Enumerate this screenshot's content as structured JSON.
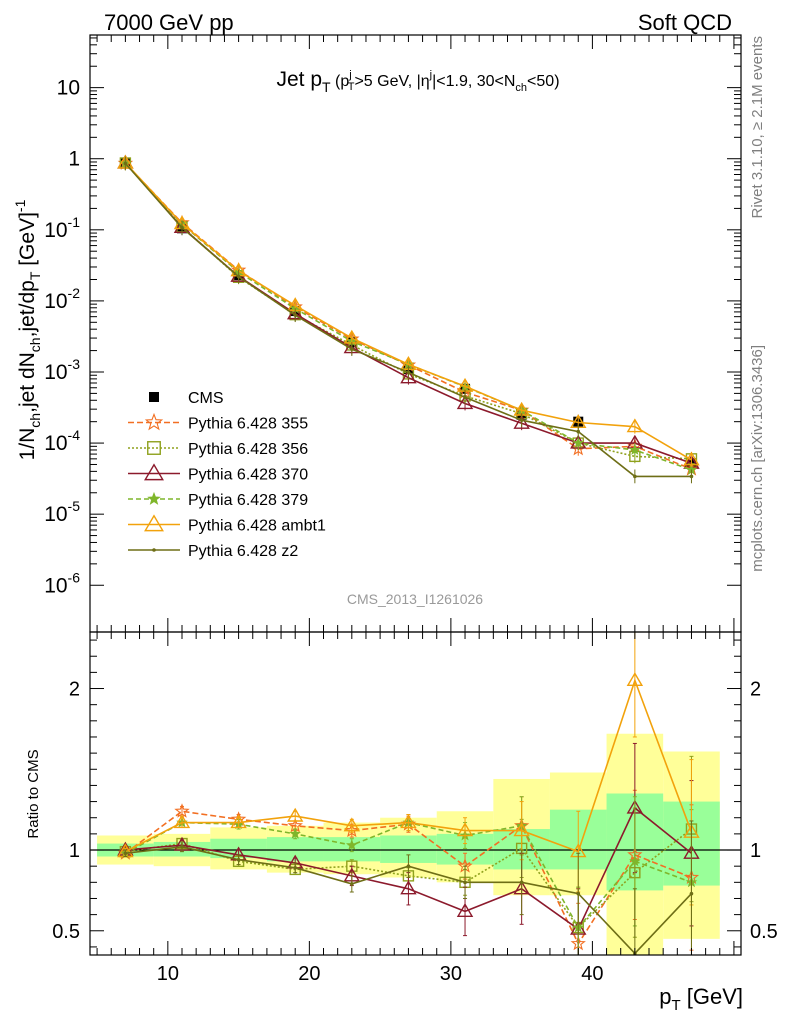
{
  "header": {
    "left": "7000 GeV pp",
    "right": "Soft QCD"
  },
  "side_labels": {
    "top": "Rivet 3.1.10, ≥ 2.1M events",
    "bottom": "mcplots.cern.ch [arXiv:1306.3436]"
  },
  "watermark": "CMS_2013_I1261026",
  "colors": {
    "cms": "#000000",
    "p355": "#f26f22",
    "p356": "#8fa11d",
    "p370": "#8c1a2c",
    "p379": "#7fb62b",
    "ambt1": "#f2a20c",
    "z2": "#6e6e16",
    "band_inner": "#99ff99",
    "band_outer": "#ffff99"
  },
  "chart_data": [
    {
      "type": "line",
      "panel": "main",
      "title": "Jet p_T (p_T^j>5 GeV, |η^j|<1.9, 30<N_ch<50)",
      "title_parts": {
        "main": "Jet p",
        "main_sub": "T",
        "cond": "(p",
        "cond_sup": "j",
        "cond_sub": "T",
        "cond_rest1": ">5 GeV, |η",
        "cond_sup2": "j",
        "cond_rest2": "|<1.9, 30<N",
        "cond_sub2": "ch",
        "cond_rest3": "<50)"
      },
      "ylabel": "1/N_ch,jet dN_ch,jet/dp_T [GeV]^-1",
      "ylabel_parts": {
        "a": "1/N",
        "a_sub": "ch",
        "b": ",jet dN",
        "b_sub": "ch",
        "c": ",jet/dp",
        "c_sub": "T",
        "d": " [GeV]",
        "d_sup": "-1"
      },
      "xlim": [
        4.5,
        50.5
      ],
      "ylim": [
        2.2e-07,
        55
      ],
      "yscale": "log",
      "ytick_values": [
        1e-06,
        1e-05,
        0.0001,
        0.001,
        0.01,
        0.1,
        1,
        10
      ],
      "ytick_labels": [
        {
          "base": "10",
          "exp": "-6"
        },
        {
          "base": "10",
          "exp": "-5"
        },
        {
          "base": "10",
          "exp": "-4"
        },
        {
          "base": "10",
          "exp": "-3"
        },
        {
          "base": "10",
          "exp": "-2"
        },
        {
          "base": "10",
          "exp": "-1"
        },
        {
          "base": "1",
          "exp": ""
        },
        {
          "base": "10",
          "exp": ""
        }
      ],
      "x": [
        7,
        11,
        15,
        19,
        23,
        27,
        31,
        35,
        39,
        43,
        47
      ],
      "series": [
        {
          "name": "CMS",
          "key": "cms",
          "marker": "square",
          "values": [
            0.88,
            0.105,
            0.023,
            0.0072,
            0.0026,
            0.0011,
            0.00058,
            0.00025,
            0.0002,
            null,
            5.2e-05
          ]
        },
        {
          "name": "Pythia 6.428 355",
          "key": "p355",
          "marker": "star",
          "dash": "6,3",
          "values": [
            0.86,
            0.125,
            0.027,
            0.0082,
            0.0029,
            0.00125,
            0.00052,
            0.00029,
            8.3e-05,
            9e-05,
            4.3e-05
          ]
        },
        {
          "name": "Pythia 6.428 356",
          "key": "p356",
          "marker": "open-square",
          "dash": "2,2",
          "values": [
            0.87,
            0.11,
            0.0215,
            0.0064,
            0.0024,
            0.00094,
            0.00046,
            0.00026,
            0.0001,
            6.5e-05,
            6e-05
          ]
        },
        {
          "name": "Pythia 6.428 370",
          "key": "p370",
          "marker": "open-triangle",
          "values": [
            0.87,
            0.108,
            0.0222,
            0.0066,
            0.0022,
            0.00083,
            0.00036,
            0.00019,
            0.0001,
            0.0001,
            5.2e-05
          ]
        },
        {
          "name": "Pythia 6.428 379",
          "key": "p379",
          "marker": "small-star",
          "dash": "5,3",
          "values": [
            0.86,
            0.12,
            0.0255,
            0.0078,
            0.0027,
            0.00128,
            0.00062,
            0.00029,
            0.0001,
            8e-05,
            4.2e-05
          ]
        },
        {
          "name": "Pythia 6.428 ambt1",
          "key": "ambt1",
          "marker": "open-triangle",
          "values": [
            0.87,
            0.122,
            0.0265,
            0.0086,
            0.003,
            0.00128,
            0.00063,
            0.00029,
            0.000195,
            0.00017,
            5.8e-05
          ]
        },
        {
          "name": "Pythia 6.428 z2",
          "key": "z2",
          "marker": "dot",
          "values": [
            0.86,
            0.107,
            0.022,
            0.0063,
            0.0021,
            0.00099,
            0.00044,
            0.00021,
            0.000145,
            3.4e-05,
            3.4e-05
          ]
        }
      ],
      "legend_placement": "bottom-left"
    },
    {
      "type": "line",
      "panel": "ratio",
      "ylabel": "Ratio to CMS",
      "xlabel": "p_T [GeV]",
      "xlabel_parts": {
        "main": "p",
        "sub": "T",
        "rest": " [GeV]"
      },
      "xlim": [
        4.5,
        50.5
      ],
      "ylim": [
        0.35,
        2.35
      ],
      "ytick_values": [
        0.5,
        1,
        2
      ],
      "ytick_labels": [
        "0.5",
        "1",
        "2"
      ],
      "xtick_values": [
        10,
        20,
        30,
        40
      ],
      "xtick_labels": [
        "10",
        "20",
        "30",
        "40"
      ],
      "reference_line": 1,
      "band_edges": [
        5,
        9,
        13,
        17,
        21,
        25,
        29,
        33,
        37,
        41,
        45,
        49
      ],
      "band_inner": [
        [
          0.96,
          1.04
        ],
        [
          0.96,
          1.05
        ],
        [
          0.95,
          1.07
        ],
        [
          0.93,
          1.08
        ],
        [
          0.93,
          1.08
        ],
        [
          0.92,
          1.09
        ],
        [
          0.91,
          1.1
        ],
        [
          0.88,
          1.13
        ],
        [
          0.88,
          1.25
        ],
        [
          0.75,
          1.35
        ],
        [
          0.78,
          1.3
        ]
      ],
      "band_outer": [
        [
          0.91,
          1.09
        ],
        [
          0.9,
          1.1
        ],
        [
          0.88,
          1.14
        ],
        [
          0.86,
          1.15
        ],
        [
          0.85,
          1.17
        ],
        [
          0.83,
          1.2
        ],
        [
          0.8,
          1.24
        ],
        [
          0.72,
          1.44
        ],
        [
          0.72,
          1.48
        ],
        [
          0.35,
          1.72
        ],
        [
          0.45,
          1.61
        ]
      ],
      "x": [
        7,
        11,
        15,
        19,
        23,
        27,
        31,
        35,
        39,
        43,
        47
      ],
      "series": [
        {
          "name": "Pythia 6.428 355",
          "key": "p355",
          "marker": "star",
          "dash": "6,3",
          "values": [
            0.98,
            1.24,
            1.19,
            1.15,
            1.12,
            1.16,
            0.9,
            1.15,
            0.42,
            0.97,
            0.83
          ]
        },
        {
          "name": "Pythia 6.428 356",
          "key": "p356",
          "marker": "open-square",
          "dash": "2,2",
          "values": [
            0.99,
            1.04,
            0.93,
            0.88,
            0.9,
            0.84,
            0.8,
            1.01,
            0.52,
            0.86,
            1.13
          ]
        },
        {
          "name": "Pythia 6.428 370",
          "key": "p370",
          "marker": "open-triangle",
          "values": [
            1.0,
            1.03,
            0.97,
            0.92,
            0.84,
            0.76,
            0.62,
            0.76,
            0.51,
            1.26,
            0.98
          ]
        },
        {
          "name": "Pythia 6.428 379",
          "key": "p379",
          "marker": "small-star",
          "dash": "5,3",
          "values": [
            0.98,
            1.17,
            1.16,
            1.1,
            1.03,
            1.17,
            1.09,
            1.15,
            0.52,
            0.93,
            0.8
          ]
        },
        {
          "name": "Pythia 6.428 ambt1",
          "key": "ambt1",
          "marker": "open-triangle",
          "values": [
            0.99,
            1.17,
            1.17,
            1.21,
            1.15,
            1.17,
            1.12,
            1.12,
            0.99,
            2.05,
            1.11
          ]
        },
        {
          "name": "Pythia 6.428 z2",
          "key": "z2",
          "marker": "dot",
          "values": [
            0.98,
            1.02,
            0.94,
            0.89,
            0.79,
            0.9,
            0.8,
            0.8,
            0.73,
            0.36,
            0.73
          ]
        }
      ],
      "errors": [
        [
          0.02,
          0.03,
          0.03,
          0.03,
          0.04,
          0.05,
          0.08,
          0.18,
          0.25,
          0.4,
          0.45
        ],
        [
          0.02,
          0.03,
          0.03,
          0.03,
          0.04,
          0.05,
          0.08,
          0.18,
          0.25,
          0.4,
          0.45
        ],
        [
          0.02,
          0.03,
          0.03,
          0.03,
          0.06,
          0.1,
          0.15,
          0.22,
          0.25,
          0.4,
          0.45
        ],
        [
          0.02,
          0.03,
          0.03,
          0.03,
          0.04,
          0.05,
          0.08,
          0.18,
          0.25,
          0.4,
          0.45
        ],
        [
          0.02,
          0.03,
          0.03,
          0.03,
          0.04,
          0.05,
          0.08,
          0.18,
          0.25,
          0.35,
          0.45
        ],
        [
          0.02,
          0.03,
          0.03,
          0.03,
          0.05,
          0.07,
          0.1,
          0.2,
          0.25,
          0.4,
          0.45
        ]
      ]
    }
  ]
}
